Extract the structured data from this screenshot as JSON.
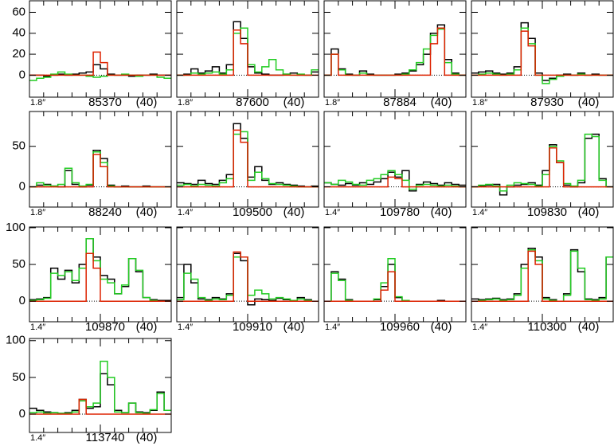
{
  "chart_data": [
    {
      "type": "line",
      "annotation": "1.8″",
      "title": "85370",
      "subtitle": "(40)",
      "ylim": [
        -21,
        71
      ],
      "yticks": [
        0,
        20,
        40,
        60
      ],
      "series": [
        {
          "color": "#000000",
          "values": [
            0,
            0,
            -1,
            0,
            1,
            0,
            1,
            2,
            3,
            10,
            6,
            1,
            0,
            0,
            -1,
            0,
            0,
            1,
            0,
            0
          ]
        },
        {
          "color": "#22cc22",
          "values": [
            -5,
            -3,
            -2,
            1,
            3,
            1,
            0,
            0,
            -1,
            -2,
            -1,
            0,
            0,
            1,
            0,
            -1,
            0,
            0,
            -2,
            -3
          ]
        },
        {
          "color": "#dd2200",
          "values": [
            0,
            0,
            0,
            0,
            0,
            0,
            0,
            0,
            0,
            22,
            12,
            0,
            0,
            0,
            0,
            0,
            0,
            0,
            0,
            0
          ]
        }
      ]
    },
    {
      "type": "line",
      "annotation": "1.8″",
      "title": "87600",
      "subtitle": "(40)",
      "ylim": [
        -21,
        71
      ],
      "yticks": [
        0,
        20,
        40,
        60
      ],
      "series": [
        {
          "color": "#000000",
          "values": [
            0,
            1,
            6,
            2,
            4,
            8,
            2,
            10,
            51,
            35,
            8,
            2,
            1,
            0,
            0,
            1,
            2,
            0,
            0,
            3
          ]
        },
        {
          "color": "#22cc22",
          "values": [
            0,
            0,
            2,
            1,
            2,
            3,
            1,
            5,
            40,
            45,
            10,
            3,
            8,
            15,
            5,
            1,
            0,
            1,
            0,
            5
          ]
        },
        {
          "color": "#dd2200",
          "values": [
            0,
            0,
            0,
            0,
            0,
            0,
            0,
            0,
            43,
            30,
            0,
            0,
            0,
            0,
            0,
            0,
            0,
            0,
            0,
            0
          ]
        }
      ]
    },
    {
      "type": "line",
      "annotation": "1.8″",
      "title": "87884",
      "subtitle": "(40)",
      "ylim": [
        -21,
        71
      ],
      "yticks": [
        0,
        20,
        40,
        60
      ],
      "series": [
        {
          "color": "#000000",
          "values": [
            0,
            25,
            6,
            1,
            0,
            4,
            1,
            0,
            0,
            0,
            1,
            2,
            4,
            10,
            20,
            40,
            48,
            15,
            2,
            0
          ]
        },
        {
          "color": "#22cc22",
          "values": [
            0,
            20,
            5,
            0,
            0,
            2,
            0,
            0,
            0,
            0,
            0,
            1,
            5,
            12,
            25,
            38,
            44,
            12,
            1,
            0
          ]
        },
        {
          "color": "#dd2200",
          "values": [
            0,
            20,
            0,
            0,
            0,
            0,
            0,
            0,
            0,
            0,
            0,
            0,
            0,
            0,
            0,
            30,
            45,
            0,
            0,
            0
          ]
        }
      ]
    },
    {
      "type": "line",
      "annotation": "1.8″",
      "title": "87930",
      "subtitle": "(40)",
      "ylim": [
        -21,
        71
      ],
      "yticks": [
        0,
        20,
        40,
        60
      ],
      "series": [
        {
          "color": "#000000",
          "values": [
            2,
            3,
            4,
            2,
            1,
            2,
            8,
            50,
            35,
            2,
            -5,
            -3,
            0,
            1,
            0,
            2,
            0,
            1,
            0,
            0
          ]
        },
        {
          "color": "#22cc22",
          "values": [
            0,
            1,
            2,
            1,
            0,
            1,
            5,
            45,
            30,
            0,
            -8,
            -4,
            -1,
            0,
            0,
            1,
            0,
            0,
            0,
            0
          ]
        },
        {
          "color": "#dd2200",
          "values": [
            0,
            0,
            0,
            0,
            0,
            0,
            0,
            42,
            28,
            0,
            0,
            0,
            0,
            0,
            0,
            0,
            0,
            0,
            0,
            0
          ]
        }
      ]
    },
    {
      "type": "line",
      "annotation": "1.8″",
      "title": "88240",
      "subtitle": "(40)",
      "ylim": [
        -25,
        93
      ],
      "yticks": [
        0,
        50
      ],
      "series": [
        {
          "color": "#000000",
          "values": [
            0,
            2,
            3,
            1,
            0,
            20,
            3,
            0,
            2,
            45,
            35,
            2,
            0,
            1,
            0,
            0,
            1,
            0,
            0,
            0
          ]
        },
        {
          "color": "#22cc22",
          "values": [
            0,
            5,
            2,
            1,
            3,
            23,
            5,
            1,
            3,
            43,
            30,
            1,
            0,
            0,
            0,
            0,
            0,
            0,
            0,
            0
          ]
        },
        {
          "color": "#dd2200",
          "values": [
            0,
            0,
            0,
            0,
            0,
            0,
            0,
            0,
            0,
            40,
            25,
            0,
            0,
            0,
            0,
            0,
            0,
            0,
            0,
            0
          ]
        }
      ]
    },
    {
      "type": "line",
      "annotation": "1.4″",
      "title": "109500",
      "subtitle": "(40)",
      "ylim": [
        -25,
        93
      ],
      "yticks": [
        0,
        50
      ],
      "series": [
        {
          "color": "#000000",
          "values": [
            5,
            4,
            3,
            8,
            4,
            3,
            8,
            15,
            78,
            60,
            12,
            25,
            8,
            3,
            5,
            3,
            2,
            1,
            0,
            1
          ]
        },
        {
          "color": "#22cc22",
          "values": [
            2,
            3,
            1,
            3,
            2,
            1,
            5,
            10,
            65,
            68,
            8,
            18,
            10,
            4,
            3,
            2,
            1,
            0,
            0,
            0
          ]
        },
        {
          "color": "#dd2200",
          "values": [
            0,
            0,
            0,
            0,
            0,
            0,
            0,
            0,
            70,
            55,
            0,
            0,
            0,
            0,
            0,
            0,
            0,
            0,
            0,
            0
          ]
        }
      ]
    },
    {
      "type": "line",
      "annotation": "1.4″",
      "title": "109780",
      "subtitle": "(40)",
      "ylim": [
        -25,
        93
      ],
      "yticks": [
        0,
        50
      ],
      "series": [
        {
          "color": "#000000",
          "values": [
            5,
            3,
            2,
            4,
            2,
            5,
            3,
            6,
            10,
            18,
            12,
            20,
            -5,
            3,
            6,
            4,
            2,
            5,
            3,
            2
          ]
        },
        {
          "color": "#22cc22",
          "values": [
            5,
            3,
            8,
            6,
            3,
            2,
            8,
            10,
            15,
            20,
            15,
            8,
            -3,
            2,
            3,
            2,
            1,
            2,
            1,
            0
          ]
        },
        {
          "color": "#dd2200",
          "values": [
            0,
            0,
            0,
            0,
            0,
            0,
            0,
            0,
            0,
            12,
            10,
            0,
            0,
            0,
            0,
            0,
            0,
            0,
            0,
            0
          ]
        }
      ]
    },
    {
      "type": "line",
      "annotation": "1.4″",
      "title": "109830",
      "subtitle": "(40)",
      "ylim": [
        -25,
        93
      ],
      "yticks": [
        0,
        50
      ],
      "series": [
        {
          "color": "#000000",
          "values": [
            0,
            1,
            2,
            3,
            -10,
            0,
            2,
            3,
            5,
            2,
            20,
            52,
            30,
            2,
            0,
            5,
            60,
            65,
            10,
            0
          ]
        },
        {
          "color": "#22cc22",
          "values": [
            0,
            2,
            3,
            1,
            -5,
            2,
            5,
            4,
            3,
            1,
            15,
            50,
            32,
            4,
            1,
            8,
            65,
            62,
            8,
            0
          ]
        },
        {
          "color": "#dd2200",
          "values": [
            0,
            0,
            0,
            0,
            0,
            0,
            0,
            0,
            0,
            0,
            0,
            48,
            30,
            0,
            0,
            0,
            0,
            0,
            0,
            0
          ]
        }
      ]
    },
    {
      "type": "line",
      "annotation": "1.4″",
      "title": "109870",
      "subtitle": "(40)",
      "ylim": [
        -28,
        101
      ],
      "yticks": [
        0,
        50,
        100
      ],
      "series": [
        {
          "color": "#000000",
          "values": [
            2,
            3,
            5,
            45,
            30,
            42,
            25,
            50,
            85,
            60,
            35,
            30,
            10,
            20,
            58,
            40,
            5,
            2,
            1,
            1
          ]
        },
        {
          "color": "#22cc22",
          "values": [
            1,
            2,
            4,
            38,
            35,
            40,
            28,
            45,
            85,
            55,
            30,
            25,
            10,
            22,
            58,
            42,
            5,
            1,
            0,
            0
          ]
        },
        {
          "color": "#dd2200",
          "values": [
            0,
            0,
            0,
            0,
            0,
            0,
            0,
            0,
            65,
            45,
            0,
            0,
            0,
            0,
            0,
            0,
            0,
            0,
            0,
            0
          ]
        }
      ]
    },
    {
      "type": "line",
      "annotation": "1.4″",
      "title": "109910",
      "subtitle": "(40)",
      "ylim": [
        -28,
        101
      ],
      "yticks": [
        0,
        50,
        100
      ],
      "series": [
        {
          "color": "#000000",
          "values": [
            5,
            50,
            25,
            3,
            2,
            5,
            3,
            10,
            65,
            55,
            -5,
            3,
            2,
            1,
            4,
            2,
            1,
            5,
            2,
            0
          ]
        },
        {
          "color": "#22cc22",
          "values": [
            2,
            38,
            30,
            5,
            1,
            3,
            2,
            8,
            60,
            60,
            8,
            15,
            10,
            3,
            5,
            3,
            1,
            3,
            1,
            0
          ]
        },
        {
          "color": "#dd2200",
          "values": [
            0,
            0,
            0,
            0,
            0,
            0,
            0,
            0,
            67,
            60,
            0,
            0,
            0,
            0,
            0,
            0,
            0,
            0,
            0,
            0
          ]
        }
      ]
    },
    {
      "type": "line",
      "annotation": "1.4″",
      "title": "109960",
      "subtitle": "(40)",
      "ylim": [
        -28,
        101
      ],
      "yticks": [
        0,
        50,
        100
      ],
      "series": [
        {
          "color": "#000000",
          "values": [
            0,
            40,
            30,
            2,
            0,
            0,
            0,
            2,
            20,
            50,
            5,
            1,
            0,
            0,
            0,
            0,
            1,
            0,
            0,
            0
          ]
        },
        {
          "color": "#22cc22",
          "values": [
            0,
            38,
            28,
            1,
            0,
            0,
            0,
            3,
            25,
            58,
            6,
            1,
            0,
            0,
            0,
            0,
            0,
            0,
            0,
            0
          ]
        },
        {
          "color": "#dd2200",
          "values": [
            0,
            0,
            0,
            0,
            0,
            0,
            0,
            0,
            15,
            40,
            0,
            0,
            0,
            0,
            0,
            0,
            0,
            0,
            0,
            0
          ]
        }
      ]
    },
    {
      "type": "line",
      "annotation": "1.4″",
      "title": "110300",
      "subtitle": "(40)",
      "ylim": [
        -28,
        101
      ],
      "yticks": [
        0,
        50,
        100
      ],
      "series": [
        {
          "color": "#000000",
          "values": [
            3,
            2,
            3,
            4,
            2,
            3,
            10,
            50,
            72,
            60,
            5,
            2,
            0,
            10,
            70,
            40,
            3,
            2,
            5,
            60
          ]
        },
        {
          "color": "#22cc22",
          "values": [
            0,
            1,
            2,
            3,
            1,
            2,
            8,
            45,
            70,
            55,
            3,
            1,
            0,
            8,
            68,
            45,
            2,
            1,
            3,
            60
          ]
        },
        {
          "color": "#dd2200",
          "values": [
            0,
            0,
            0,
            0,
            0,
            0,
            0,
            0,
            68,
            50,
            0,
            0,
            0,
            0,
            0,
            0,
            0,
            0,
            0,
            0
          ]
        }
      ]
    },
    {
      "type": "line",
      "annotation": "1.4″",
      "title": "113740",
      "subtitle": "(40)",
      "ylim": [
        -25,
        103
      ],
      "yticks": [
        0,
        50,
        100
      ],
      "series": [
        {
          "color": "#000000",
          "values": [
            8,
            5,
            3,
            2,
            1,
            2,
            5,
            20,
            8,
            10,
            55,
            40,
            5,
            2,
            15,
            3,
            2,
            5,
            30,
            5
          ]
        },
        {
          "color": "#22cc22",
          "values": [
            2,
            3,
            1,
            2,
            1,
            1,
            3,
            18,
            10,
            15,
            72,
            50,
            3,
            2,
            15,
            2,
            1,
            6,
            28,
            5
          ]
        },
        {
          "color": "#dd2200",
          "values": [
            0,
            0,
            0,
            0,
            0,
            0,
            0,
            20,
            0,
            0,
            0,
            0,
            0,
            0,
            0,
            0,
            0,
            0,
            0,
            0
          ]
        }
      ]
    }
  ]
}
